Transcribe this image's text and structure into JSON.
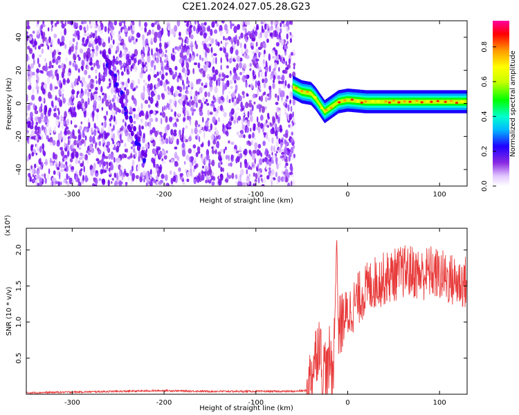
{
  "figure_title": "C2E1.2024.027.05.28.G23",
  "chart_data": [
    {
      "type": "heatmap",
      "xlabel": "Height of straight line (km)",
      "ylabel": "Frequency (Hz)",
      "xlim": [
        -350,
        130
      ],
      "ylim": [
        -50,
        50
      ],
      "x_ticks": [
        -300,
        -200,
        -100,
        0,
        100
      ],
      "x_tick_labels": [
        "-300",
        "-200",
        "-100",
        "0",
        "100"
      ],
      "y_ticks": [
        -40,
        -20,
        0,
        20,
        40
      ],
      "y_tick_labels": [
        "-40",
        "-20",
        "0",
        "20",
        "40"
      ],
      "colorbar": {
        "label": "Normalized spectral amplitude",
        "range": [
          0,
          0.95
        ],
        "ticks": [
          0.0,
          0.2,
          0.4,
          0.6,
          0.8
        ],
        "tick_labels": [
          "0.0",
          "0.2",
          "0.4",
          "0.6",
          "0.8"
        ],
        "colormap": "rainbow"
      },
      "noise_region": {
        "x_range": [
          -350,
          -58
        ],
        "description_level": "low-amplitude speckle 0.0-0.3"
      },
      "ridge": {
        "x": [
          -60,
          -50,
          -40,
          -35,
          -30,
          -25,
          -20,
          -10,
          0,
          20,
          50,
          80,
          110,
          130
        ],
        "y": [
          10,
          7,
          6,
          3,
          -1,
          -5,
          -3,
          1,
          2,
          1,
          1,
          1,
          1,
          1
        ]
      },
      "diagonal_feature": {
        "x": [
          -265,
          -250,
          -235,
          -220
        ],
        "y": [
          30,
          10,
          -15,
          -35
        ]
      }
    },
    {
      "type": "line",
      "xlabel": "Height of straight line (km)",
      "ylabel": "SNR (10 * v/v)",
      "y_scale_note": "(x10⁴)",
      "xlim": [
        -350,
        130
      ],
      "ylim": [
        0,
        2.3
      ],
      "x_ticks": [
        -300,
        -200,
        -100,
        0,
        100
      ],
      "x_tick_labels": [
        "-300",
        "-200",
        "-100",
        "0",
        "100"
      ],
      "y_ticks": [
        0.5,
        1.0,
        1.5,
        2.0
      ],
      "y_tick_labels": [
        "0.5",
        "1.0",
        "1.5",
        "2.0"
      ],
      "series_color": "#e83a3a",
      "series": [
        {
          "x": [
            -350,
            -300,
            -250,
            -200,
            -150,
            -100,
            -60,
            -45,
            -40,
            -35,
            -30,
            -28,
            -25,
            -22,
            -20,
            -17,
            -15,
            -12,
            -10,
            -8,
            -5,
            0,
            5,
            10,
            20,
            30,
            40,
            50,
            60,
            70,
            80,
            90,
            100,
            110,
            120,
            130
          ],
          "y": [
            0.02,
            0.03,
            0.04,
            0.05,
            0.04,
            0.04,
            0.04,
            0.05,
            0.25,
            0.55,
            0.8,
            0.15,
            0.45,
            0.2,
            0.5,
            0.35,
            0.55,
            2.2,
            0.9,
            0.95,
            1.05,
            1.1,
            1.2,
            1.3,
            1.45,
            1.55,
            1.6,
            1.65,
            1.7,
            1.7,
            1.65,
            1.7,
            1.65,
            1.6,
            1.55,
            1.55
          ]
        }
      ]
    }
  ]
}
